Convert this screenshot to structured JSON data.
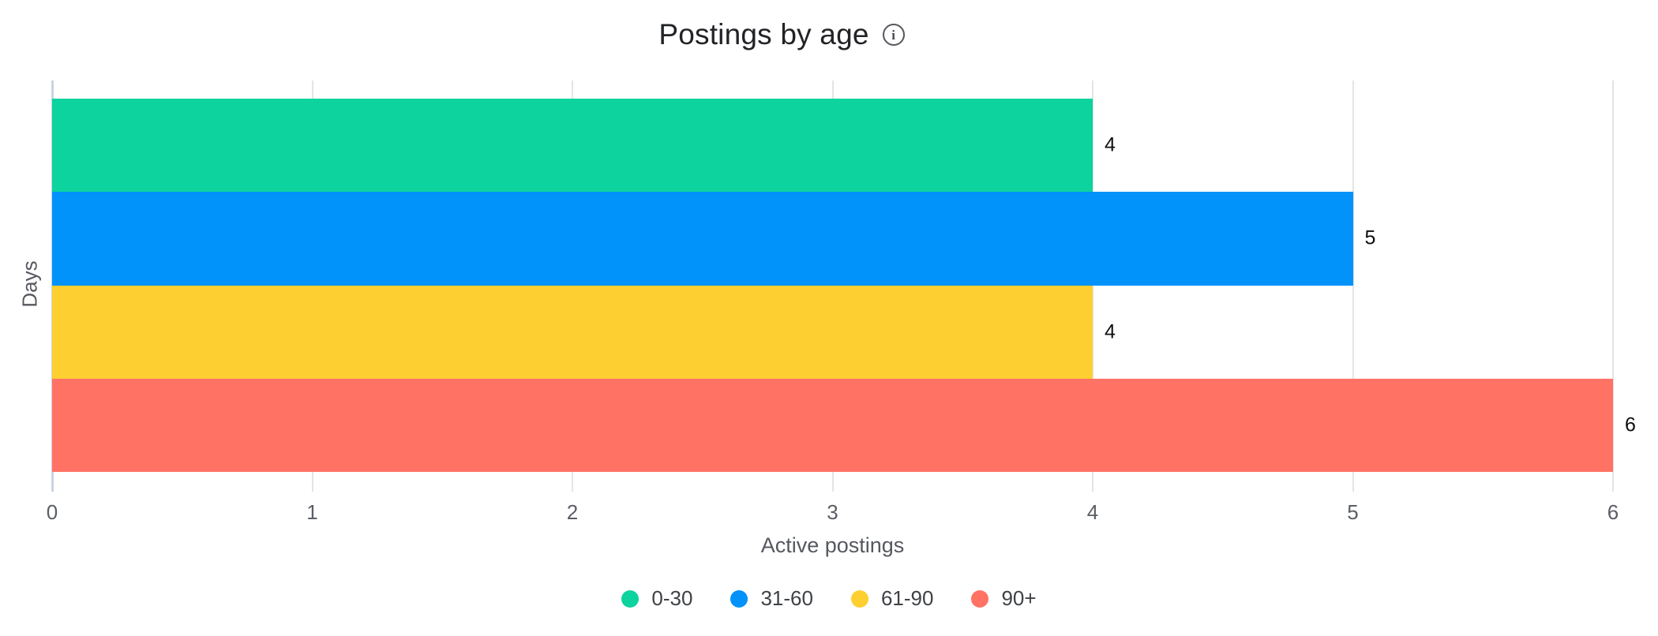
{
  "header": {
    "info_icon_glyph": "i"
  },
  "chart_data": {
    "type": "bar",
    "orientation": "horizontal",
    "title": "Postings by age",
    "categories": [
      "0-30",
      "31-60",
      "61-90",
      "90+"
    ],
    "values": [
      4,
      5,
      4,
      6
    ],
    "value_labels": [
      "4",
      "5",
      "4",
      "6"
    ],
    "bar_colors": [
      "#0dd39e",
      "#0192fa",
      "#fdcf31",
      "#ff7264"
    ],
    "xlabel": "Active postings",
    "ylabel": "Days",
    "xlim": [
      0,
      6
    ],
    "xticks": [
      "0",
      "1",
      "2",
      "3",
      "4",
      "5",
      "6"
    ],
    "grid": "vertical",
    "legend_position": "bottom",
    "legend": [
      {
        "label": "0-30",
        "color": "#0dd39e"
      },
      {
        "label": "31-60",
        "color": "#0192fa"
      },
      {
        "label": "61-90",
        "color": "#fdcf31"
      },
      {
        "label": "90+",
        "color": "#ff7264"
      }
    ]
  },
  "colors": {
    "background": "#ffffff",
    "gridline": "#e4e4e4",
    "axis_zero_line": "#c9d4e1",
    "title_text": "#212326",
    "axis_text": "#55585e",
    "tick_text": "#5b5e63",
    "value_text": "#0d0d0d",
    "legend_text": "#3e4145"
  }
}
